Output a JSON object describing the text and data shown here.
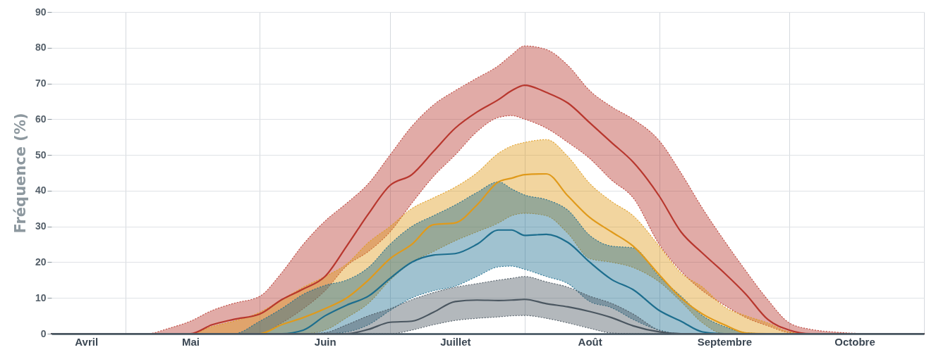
{
  "chart_data": {
    "type": "line",
    "ylabel": "Fréquence (%)",
    "grid": true,
    "x": [
      "--04-14",
      "--05-01",
      "--05-06",
      "--05-11",
      "--05-16",
      "--05-21",
      "--05-26",
      "--06-01",
      "--06-06",
      "--06-11",
      "--06-16",
      "--06-21",
      "--06-26",
      "--07-01",
      "--07-06",
      "--07-11",
      "--07-16",
      "--07-21",
      "--07-26",
      "--07-29",
      "--08-01",
      "--08-06",
      "--08-11",
      "--08-16",
      "--08-21",
      "--08-26",
      "--09-01",
      "--09-06",
      "--09-11",
      "--09-16",
      "--09-21",
      "--09-26",
      "--10-01",
      "--10-06",
      "--10-11",
      "--10-21",
      "--11-01"
    ],
    "xlim": [
      "--04-14",
      "--11-01"
    ],
    "xticks": [
      {
        "value": "--04-22",
        "label": "Avril"
      },
      {
        "value": "--05-01",
        "label": null
      },
      {
        "value": "--05-16",
        "label": "Mai"
      },
      {
        "value": "--06-01",
        "label": null
      },
      {
        "value": "--06-16",
        "label": "Juin"
      },
      {
        "value": "--07-01",
        "label": null
      },
      {
        "value": "--07-16",
        "label": "Juillet"
      },
      {
        "value": "--08-01",
        "label": null
      },
      {
        "value": "--08-16",
        "label": "Août"
      },
      {
        "value": "--09-01",
        "label": null
      },
      {
        "value": "--09-16",
        "label": "Septembre"
      },
      {
        "value": "--10-01",
        "label": null
      },
      {
        "value": "--10-16",
        "label": "Octobre"
      },
      {
        "value": "--11-01",
        "label": null
      }
    ],
    "ylim": [
      0,
      90
    ],
    "yticks": [
      0,
      10,
      20,
      30,
      40,
      50,
      60,
      70,
      80,
      90
    ],
    "series": [
      {
        "color": "#b8372e",
        "values": [
          0,
          0,
          0,
          0,
          0,
          2.5,
          4,
          5.5,
          9.5,
          12.5,
          16,
          24.5,
          33.5,
          41.5,
          44.5,
          51,
          57.5,
          62,
          65.5,
          68,
          69.5,
          67.5,
          64.5,
          59,
          53.5,
          48,
          38.5,
          28.5,
          22.5,
          17,
          11,
          4,
          1,
          0,
          0,
          0,
          0
        ],
        "lower": [
          0,
          0,
          0,
          0,
          0,
          0,
          0,
          0,
          3,
          7,
          12,
          19,
          23,
          28.5,
          36.5,
          44,
          50,
          56.5,
          60.5,
          61,
          60,
          57.5,
          53.5,
          49,
          43,
          38,
          25,
          17.5,
          12,
          8,
          4.5,
          2.2,
          0.3,
          0,
          0,
          0,
          0
        ],
        "upper": [
          0,
          0,
          0,
          1.5,
          3.5,
          6.5,
          8.5,
          10.5,
          17,
          25,
          31.5,
          36.5,
          42,
          50,
          58,
          64,
          68,
          71.5,
          75,
          78,
          80.5,
          79.5,
          75,
          68,
          63.5,
          60,
          54,
          45,
          35,
          26,
          17.5,
          9.5,
          3,
          1.2,
          0.5,
          0,
          0
        ]
      },
      {
        "color": "#e09a1b",
        "values": [
          null,
          null,
          null,
          0,
          0,
          0,
          0,
          0,
          2.5,
          4.5,
          7,
          10,
          15,
          21,
          25,
          30.5,
          31,
          36,
          42.5,
          43.5,
          44.5,
          44.7,
          38.5,
          32.5,
          28.5,
          24.5,
          16.5,
          10,
          5.5,
          2.5,
          0.2,
          0,
          0,
          0,
          null,
          null,
          null
        ],
        "lower": [
          0,
          0,
          0,
          0,
          0,
          0,
          0,
          0,
          0,
          0,
          1,
          4.5,
          8.5,
          15,
          20,
          23,
          26,
          28.5,
          31,
          33,
          33.7,
          33,
          28,
          21,
          20,
          18.5,
          14.5,
          9,
          3,
          0,
          0,
          0,
          0,
          0,
          0,
          0,
          0
        ],
        "upper": [
          0,
          0,
          0,
          0,
          0,
          2,
          3.5,
          6,
          9.5,
          13,
          16,
          19.5,
          25.5,
          30,
          35,
          38,
          41,
          45,
          50.5,
          52.5,
          53.5,
          54.3,
          49.5,
          42,
          37,
          33,
          24.5,
          17,
          13,
          7.5,
          5,
          3,
          0.5,
          0,
          0,
          0,
          0
        ]
      },
      {
        "color": "#1d6e8e",
        "values": [
          null,
          null,
          null,
          null,
          null,
          0,
          0,
          0,
          0,
          1,
          5,
          8,
          10.5,
          15.5,
          20,
          22,
          22.4,
          25,
          29,
          29,
          27.5,
          27.8,
          25.5,
          20,
          15.2,
          12.3,
          6.5,
          3.5,
          0.5,
          0,
          0,
          null,
          null,
          null,
          null,
          null,
          null
        ],
        "lower": [
          0,
          0,
          0,
          0,
          0,
          0,
          0,
          0,
          0,
          0,
          0,
          0.5,
          2.5,
          6.5,
          10,
          12,
          13.3,
          16,
          18.7,
          18.9,
          18,
          16,
          14,
          9,
          7.3,
          4,
          1,
          0,
          0,
          0,
          0,
          0,
          0,
          0,
          0,
          0,
          0
        ],
        "upper": [
          0,
          0,
          0,
          0,
          0,
          0,
          0,
          3.5,
          7,
          11,
          13.5,
          15,
          18.5,
          25,
          30,
          33,
          36,
          39.5,
          42.5,
          40.5,
          38.8,
          37.5,
          34.5,
          27.5,
          24.5,
          24,
          16,
          10.5,
          5,
          2,
          0.3,
          0,
          0,
          0,
          0,
          0,
          0
        ]
      },
      {
        "color": "#4a5660",
        "values": [
          0,
          0,
          0,
          0,
          0,
          0,
          0,
          0,
          0,
          0,
          0,
          0,
          1.2,
          3.2,
          3.5,
          6,
          9,
          9.4,
          9.3,
          9.4,
          9.6,
          8.4,
          7.5,
          6.2,
          4.5,
          2.2,
          0.5,
          0,
          0,
          0,
          0,
          0,
          0,
          0,
          0,
          0,
          0
        ],
        "lower": [
          0,
          0,
          0,
          0,
          0,
          0,
          0,
          0,
          0,
          0,
          0,
          0,
          0,
          0,
          1,
          2.5,
          3.7,
          4.3,
          4.7,
          5,
          5.1,
          4.3,
          3,
          1.5,
          0.2,
          0,
          0,
          0,
          0,
          0,
          0,
          0,
          0,
          0,
          0,
          0,
          0
        ],
        "upper": [
          0,
          0,
          0,
          0,
          0,
          0,
          0,
          0,
          0,
          0,
          0.3,
          2.5,
          5,
          7,
          9.5,
          11.5,
          13,
          14,
          15,
          15.5,
          16,
          14.5,
          13,
          10.5,
          8.5,
          5.5,
          1,
          0,
          0,
          0,
          0,
          0,
          0,
          0,
          0,
          0,
          0
        ]
      }
    ]
  }
}
